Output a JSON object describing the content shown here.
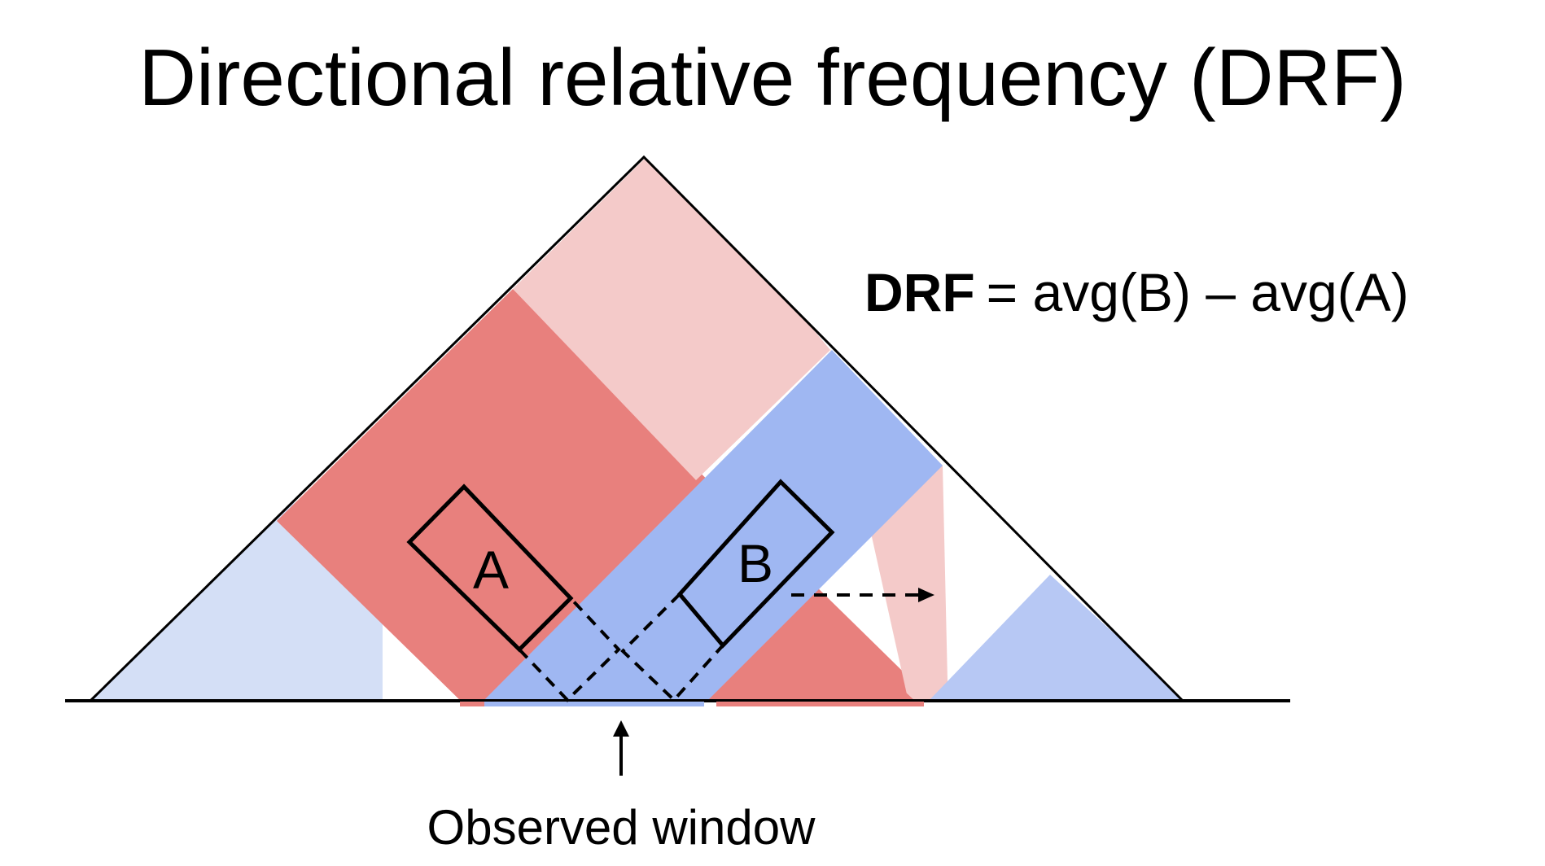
{
  "title": "Directional relative frequency (DRF)",
  "formula": {
    "lhs": "DRF",
    "rhs": "= avg(B) – avg(A)"
  },
  "boxes": {
    "a_label": "A",
    "b_label": "B"
  },
  "caption": "Observed window",
  "colors": {
    "light_blue": "#d4dff6",
    "dark_red": "#e8807d",
    "light_red": "#f4cac9",
    "mid_blue": "#9fb7f2",
    "right_blue": "#b7c8f4",
    "line": "#000000",
    "background": "#ffffff"
  },
  "icons": {
    "observed_window_pointer": "up-arrow-icon",
    "shift_direction": "dashed-right-arrow-icon"
  }
}
